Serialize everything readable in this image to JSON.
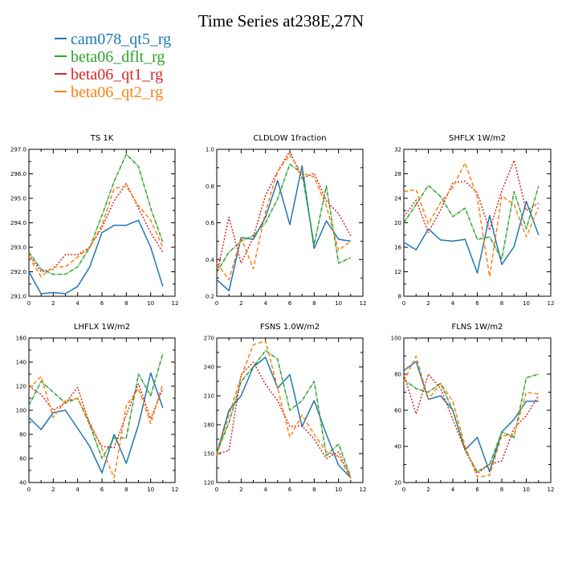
{
  "title": "Time Series at238E,27N",
  "colors": [
    "#1f77b4",
    "#2ca02c",
    "#d62728",
    "#ff7f0e"
  ],
  "legend": [
    "cam078_qt5_rg",
    "beta06_dflt_rg",
    "beta06_qt1_rg",
    "beta06_qt2_rg"
  ],
  "chart_data": [
    {
      "type": "line",
      "title": "TS   1K",
      "x": [
        0,
        1,
        2,
        3,
        4,
        5,
        6,
        7,
        8,
        9,
        10,
        11
      ],
      "xlim": [
        0,
        12
      ],
      "xticks": [
        "0",
        "2",
        "4",
        "6",
        "8",
        "10",
        "12"
      ],
      "ylim": [
        291.0,
        297.0
      ],
      "yticks": [
        "291.0",
        "292.0",
        "293.0",
        "294.0",
        "295.0",
        "296.0",
        "297.0"
      ],
      "series": [
        {
          "name": "cam078_qt5_rg",
          "values": [
            292.0,
            291.1,
            291.15,
            291.1,
            291.4,
            292.2,
            293.6,
            293.9,
            293.9,
            294.1,
            293.0,
            291.4
          ]
        },
        {
          "name": "beta06_dflt_rg",
          "values": [
            292.8,
            292.1,
            291.9,
            291.9,
            292.2,
            293.0,
            294.3,
            295.7,
            296.8,
            296.3,
            294.6,
            293.2
          ]
        },
        {
          "name": "beta06_qt1_rg",
          "values": [
            292.7,
            292.0,
            292.1,
            292.7,
            292.7,
            293.0,
            293.8,
            294.9,
            295.6,
            294.6,
            293.6,
            292.8
          ]
        },
        {
          "name": "beta06_qt2_rg",
          "values": [
            292.6,
            291.8,
            292.2,
            292.2,
            292.6,
            293.0,
            293.9,
            295.4,
            295.5,
            294.7,
            294.1,
            293.0
          ]
        }
      ]
    },
    {
      "type": "line",
      "title": "CLDLOW   1fraction",
      "x": [
        0,
        1,
        2,
        3,
        4,
        5,
        6,
        7,
        8,
        9,
        10,
        11
      ],
      "xlim": [
        0,
        12
      ],
      "xticks": [
        "0",
        "2",
        "4",
        "6",
        "8",
        "10",
        "12"
      ],
      "ylim": [
        0.2,
        1.0
      ],
      "yticks": [
        "0.2",
        "0.4",
        "0.6",
        "0.8",
        "1.0"
      ],
      "series": [
        {
          "name": "cam078_qt5_rg",
          "values": [
            0.29,
            0.23,
            0.52,
            0.51,
            0.63,
            0.83,
            0.59,
            0.91,
            0.46,
            0.61,
            0.51,
            0.5
          ]
        },
        {
          "name": "beta06_dflt_rg",
          "values": [
            0.33,
            0.44,
            0.5,
            0.53,
            0.6,
            0.73,
            0.92,
            0.87,
            0.48,
            0.8,
            0.38,
            0.41
          ]
        },
        {
          "name": "beta06_qt1_rg",
          "values": [
            0.32,
            0.63,
            0.38,
            0.52,
            0.75,
            0.88,
            0.99,
            0.84,
            0.87,
            0.72,
            0.65,
            0.53
          ]
        },
        {
          "name": "beta06_qt2_rg",
          "values": [
            0.38,
            0.29,
            0.52,
            0.35,
            0.66,
            0.88,
            0.97,
            0.87,
            0.85,
            0.69,
            0.45,
            0.5
          ]
        }
      ]
    },
    {
      "type": "line",
      "title": "SHFLX   1W/m2",
      "x": [
        0,
        1,
        2,
        3,
        4,
        5,
        6,
        7,
        8,
        9,
        10,
        11
      ],
      "xlim": [
        0,
        12
      ],
      "xticks": [
        "0",
        "2",
        "4",
        "6",
        "8",
        "10",
        "12"
      ],
      "ylim": [
        8,
        32
      ],
      "yticks": [
        "8",
        "12",
        "16",
        "20",
        "24",
        "28",
        "32"
      ],
      "series": [
        {
          "name": "cam078_qt5_rg",
          "values": [
            16.8,
            15.6,
            19.0,
            17.2,
            17.0,
            17.3,
            11.8,
            21.2,
            13.2,
            16.1,
            23.5,
            18.0
          ]
        },
        {
          "name": "beta06_dflt_rg",
          "values": [
            20.0,
            23.0,
            26.1,
            24.3,
            21.0,
            22.4,
            17.3,
            17.7,
            14.1,
            25.1,
            19.0,
            26.0
          ]
        },
        {
          "name": "beta06_qt1_rg",
          "values": [
            21.0,
            23.7,
            18.4,
            22.1,
            26.5,
            26.8,
            24.9,
            18.8,
            25.2,
            30.2,
            22.0,
            23.2
          ]
        },
        {
          "name": "beta06_qt2_rg",
          "values": [
            25.1,
            25.4,
            19.8,
            23.3,
            25.8,
            29.8,
            24.1,
            11.2,
            24.4,
            23.0,
            17.7,
            22.5
          ]
        }
      ]
    },
    {
      "type": "line",
      "title": "LHFLX   1W/m2",
      "x": [
        0,
        1,
        2,
        3,
        4,
        5,
        6,
        7,
        8,
        9,
        10,
        11
      ],
      "xlim": [
        0,
        12
      ],
      "xticks": [
        "0",
        "2",
        "4",
        "6",
        "8",
        "10",
        "12"
      ],
      "ylim": [
        40,
        160
      ],
      "yticks": [
        "40",
        "60",
        "80",
        "100",
        "120",
        "140",
        "160"
      ],
      "series": [
        {
          "name": "cam078_qt5_rg",
          "values": [
            94,
            84,
            98,
            100,
            85,
            70,
            48,
            80,
            56,
            88,
            131,
            102
          ]
        },
        {
          "name": "beta06_dflt_rg",
          "values": [
            104,
            124,
            115,
            106,
            110,
            88,
            60,
            77,
            77,
            130,
            112,
            147
          ]
        },
        {
          "name": "beta06_qt1_rg",
          "values": [
            120,
            113,
            100,
            106,
            119,
            88,
            70,
            69,
            96,
            122,
            93,
            118
          ]
        },
        {
          "name": "beta06_qt2_rg",
          "values": [
            118,
            128,
            94,
            108,
            110,
            90,
            68,
            44,
            104,
            118,
            89,
            122
          ]
        }
      ]
    },
    {
      "type": "line",
      "title": "FSNS   1.0W/m2",
      "x": [
        0,
        1,
        2,
        3,
        4,
        5,
        6,
        7,
        8,
        9,
        10,
        11
      ],
      "xlim": [
        0,
        12
      ],
      "xticks": [
        "0",
        "2",
        "4",
        "6",
        "8",
        "10",
        "12"
      ],
      "ylim": [
        120,
        270
      ],
      "yticks": [
        "120",
        "150",
        "180",
        "210",
        "240",
        "270"
      ],
      "series": [
        {
          "name": "cam078_qt5_rg",
          "values": [
            150,
            195,
            210,
            240,
            250,
            218,
            232,
            178,
            205,
            170,
            138,
            125
          ]
        },
        {
          "name": "beta06_dflt_rg",
          "values": [
            151,
            182,
            225,
            240,
            257,
            248,
            195,
            205,
            225,
            148,
            160,
            126
          ]
        },
        {
          "name": "beta06_qt1_rg",
          "values": [
            150,
            153,
            232,
            245,
            222,
            205,
            178,
            179,
            165,
            145,
            152,
            124
          ]
        },
        {
          "name": "beta06_qt2_rg",
          "values": [
            148,
            190,
            230,
            263,
            267,
            218,
            167,
            190,
            170,
            152,
            147,
            125
          ]
        }
      ]
    },
    {
      "type": "line",
      "title": "FLNS   1W/m2",
      "x": [
        0,
        1,
        2,
        3,
        4,
        5,
        6,
        7,
        8,
        9,
        10,
        11
      ],
      "xlim": [
        0,
        12
      ],
      "xticks": [
        "0",
        "2",
        "4",
        "6",
        "8",
        "10",
        "12"
      ],
      "ylim": [
        20,
        100
      ],
      "yticks": [
        "20",
        "40",
        "60",
        "80",
        "100"
      ],
      "series": [
        {
          "name": "cam078_qt5_rg",
          "values": [
            82,
            87,
            66,
            68,
            60,
            38,
            45,
            26,
            48,
            55,
            65,
            65
          ]
        },
        {
          "name": "beta06_dflt_rg",
          "values": [
            77,
            72,
            70,
            75,
            60,
            38,
            26,
            30,
            48,
            45,
            78,
            80
          ]
        },
        {
          "name": "beta06_qt1_rg",
          "values": [
            80,
            58,
            80,
            72,
            55,
            38,
            25,
            30,
            32,
            50,
            57,
            68
          ]
        },
        {
          "name": "beta06_qt2_rg",
          "values": [
            76,
            90,
            66,
            75,
            65,
            40,
            23,
            24,
            46,
            46,
            70,
            69
          ]
        }
      ]
    }
  ]
}
